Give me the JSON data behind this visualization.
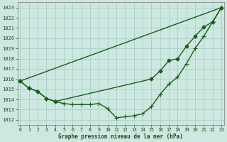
{
  "xlabel": "Graphe pression niveau de la mer (hPa)",
  "bg_color": "#cce8e0",
  "grid_color": "#aacfc8",
  "line_color": "#1a5c1a",
  "ylim": [
    1011.5,
    1023.5
  ],
  "xlim": [
    -0.3,
    23.3
  ],
  "yticks": [
    1012,
    1013,
    1014,
    1015,
    1016,
    1017,
    1018,
    1019,
    1020,
    1021,
    1022,
    1023
  ],
  "xticks": [
    0,
    1,
    2,
    3,
    4,
    5,
    6,
    7,
    8,
    9,
    10,
    11,
    12,
    13,
    14,
    15,
    16,
    17,
    18,
    19,
    20,
    21,
    22,
    23
  ],
  "line1_x": [
    0,
    23
  ],
  "line1_y": [
    1015.8,
    1023.0
  ],
  "line2_x": [
    0,
    1,
    2,
    3,
    4,
    15,
    16,
    17,
    18,
    19,
    20,
    21,
    22,
    23
  ],
  "line2_y": [
    1015.8,
    1015.1,
    1014.8,
    1014.1,
    1013.8,
    1016.0,
    1016.8,
    1017.8,
    1018.0,
    1019.2,
    1020.2,
    1021.1,
    1021.6,
    1023.0
  ],
  "line3_x": [
    0,
    1,
    2,
    3,
    4,
    5,
    6,
    7,
    8,
    9,
    10,
    11,
    12,
    13,
    14,
    15,
    16,
    17,
    18,
    19,
    20,
    21,
    22,
    23
  ],
  "line3_y": [
    1015.8,
    1015.1,
    1014.8,
    1014.1,
    1013.8,
    1013.6,
    1013.5,
    1013.5,
    1013.5,
    1013.6,
    1013.1,
    1012.2,
    1012.3,
    1012.4,
    1012.6,
    1013.3,
    1014.5,
    1015.5,
    1016.2,
    1017.5,
    1019.0,
    1020.2,
    1021.6,
    1023.0
  ],
  "marker_size": 2.5,
  "line_width": 1.0,
  "tick_fontsize": 5,
  "xlabel_fontsize": 5.5
}
